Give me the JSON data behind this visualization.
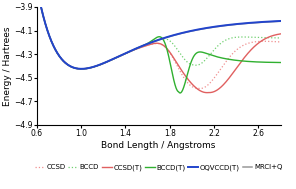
{
  "xlabel": "Bond Length / Angstroms",
  "ylabel": "Energy / Hartrees",
  "xlim": [
    0.6,
    2.8
  ],
  "ylim": [
    -4.9,
    -3.9
  ],
  "yticks": [
    -3.9,
    -4.1,
    -4.3,
    -4.5,
    -4.7,
    -4.9
  ],
  "xticks": [
    0.6,
    1.0,
    1.4,
    1.8,
    2.2,
    2.6
  ],
  "figsize": [
    2.96,
    1.89
  ],
  "dpi": 100,
  "colors": {
    "CCSD": "#f09090",
    "BCCD": "#70d070",
    "CCSD(T)": "#e06060",
    "BCCD(T)": "#30b030",
    "OQVCCD(T)": "#2244cc",
    "MRCI+Q": "#999999"
  },
  "legend_fontsize": 5.0,
  "axis_fontsize": 6.5,
  "tick_fontsize": 5.5
}
